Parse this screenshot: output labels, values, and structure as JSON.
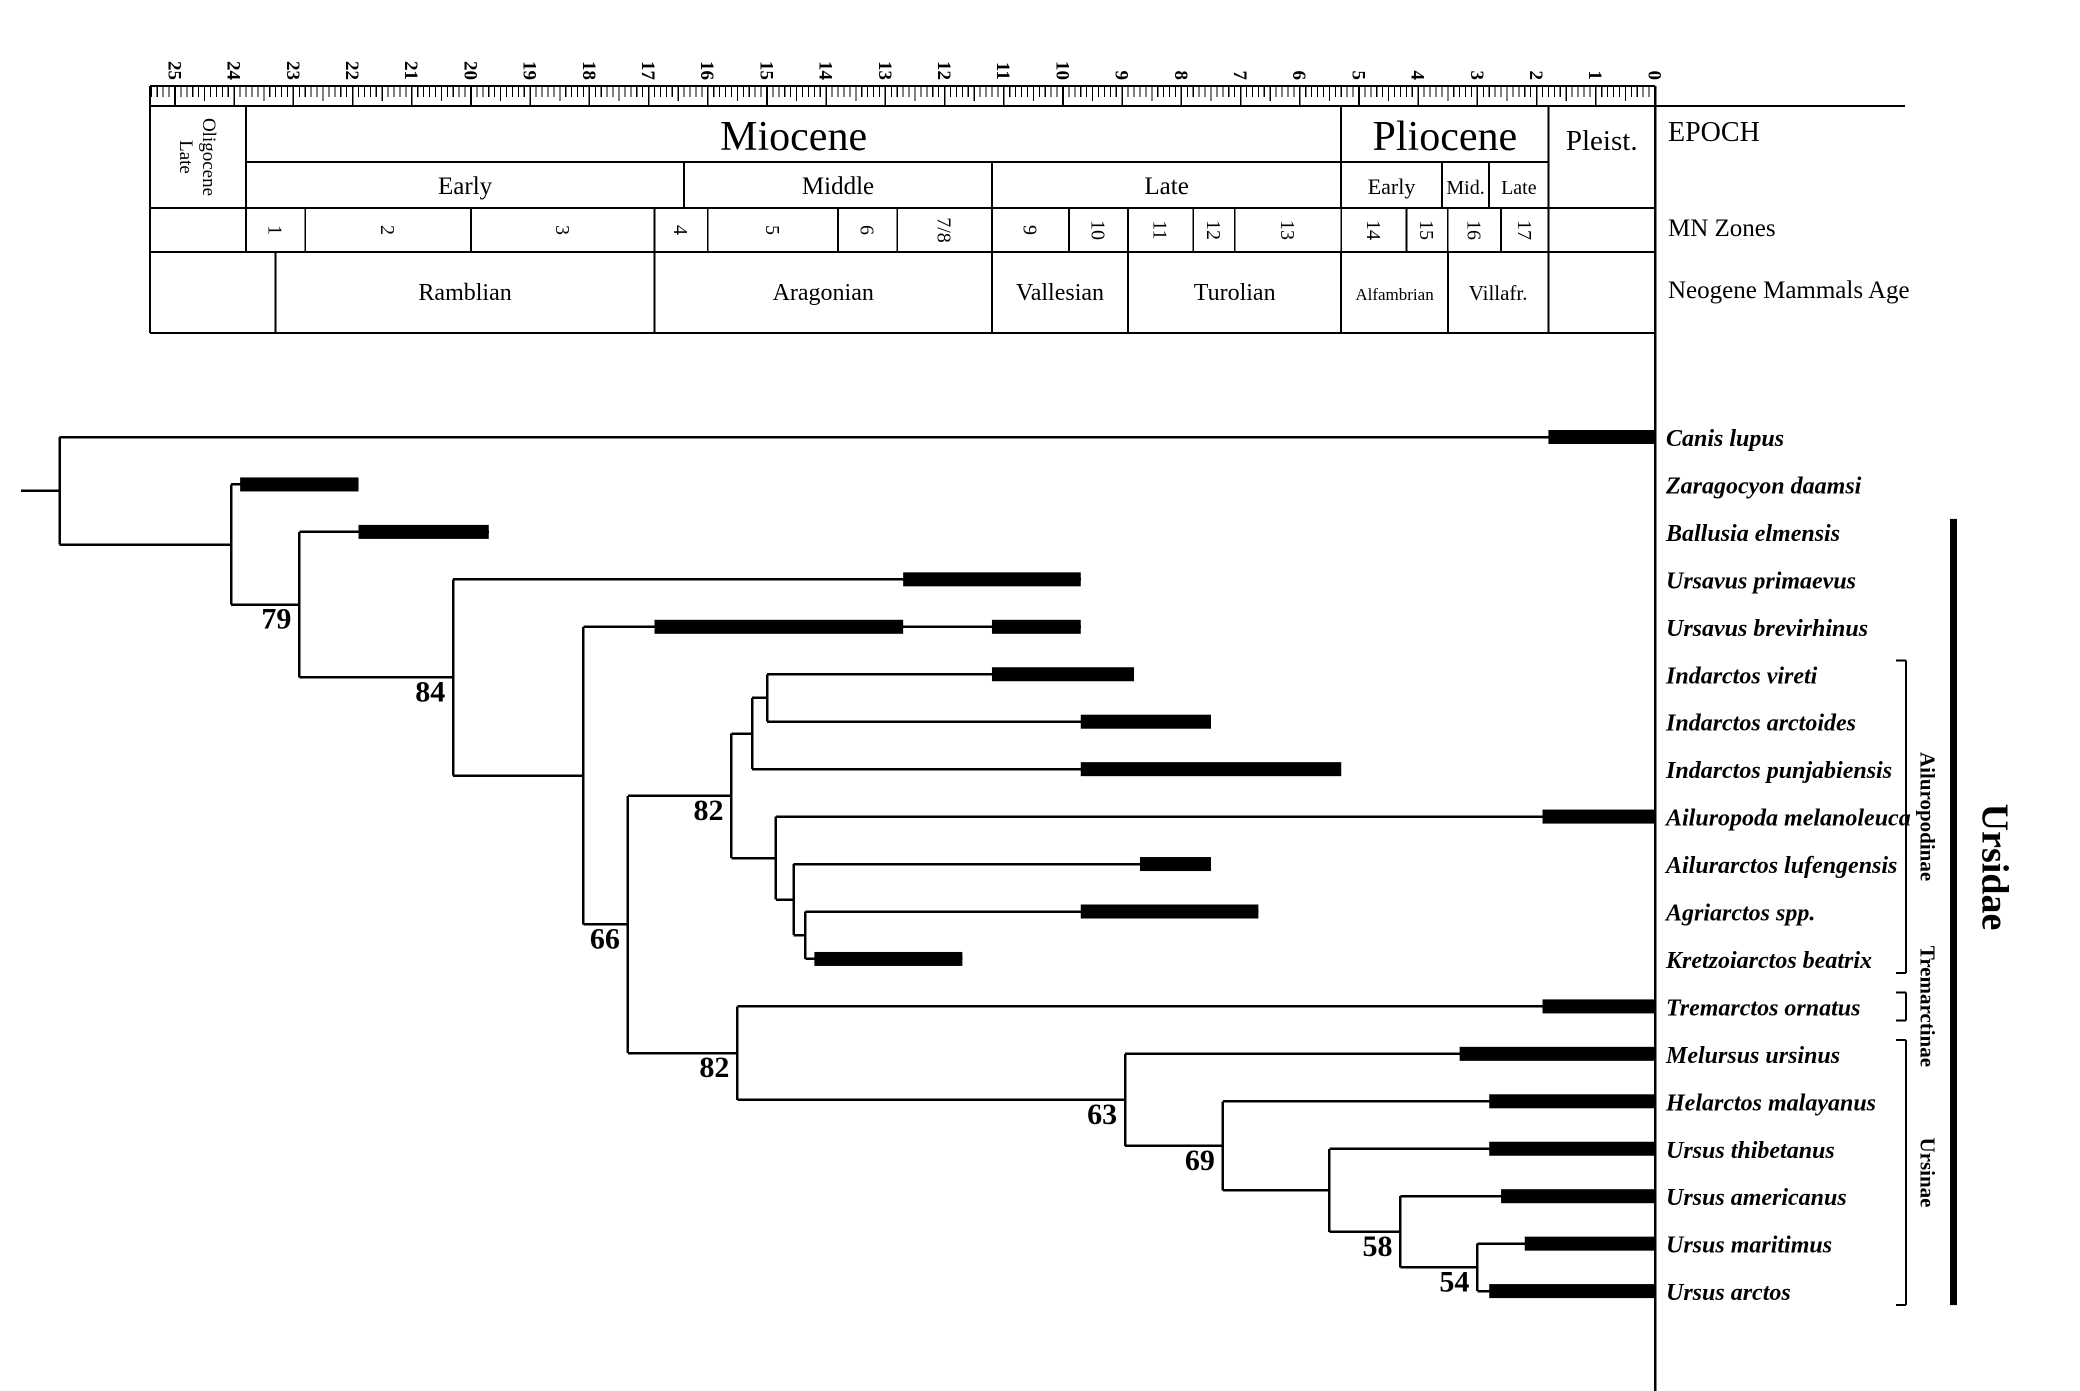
{
  "figure": {
    "background": "#ffffff",
    "ink": "#000000"
  },
  "rows": {
    "epoch": "EPOCH",
    "mn": "MN Zones",
    "age": "Neogene Mammals Age"
  },
  "timescale": {
    "unit": "Ma",
    "from": 25,
    "to": 0,
    "tick_labels": [
      25,
      24,
      23,
      22,
      21,
      20,
      19,
      18,
      17,
      16,
      15,
      14,
      13,
      12,
      11,
      10,
      9,
      8,
      7,
      6,
      5,
      4,
      3,
      2,
      1,
      0
    ],
    "minor_step": 0.1
  },
  "epochs": [
    {
      "name": "Oligocene",
      "sub": "Late",
      "from": 25.4,
      "to": 23.8,
      "rotated": true
    },
    {
      "name": "Miocene",
      "from": 23.8,
      "to": 5.3,
      "stages": [
        {
          "name": "Early",
          "from": 23.8,
          "to": 16.4
        },
        {
          "name": "Middle",
          "from": 16.4,
          "to": 11.2
        },
        {
          "name": "Late",
          "from": 11.2,
          "to": 5.3
        }
      ]
    },
    {
      "name": "Pliocene",
      "from": 5.3,
      "to": 1.8,
      "stages": [
        {
          "name": "Early",
          "from": 5.3,
          "to": 3.6
        },
        {
          "name": "Mid.",
          "from": 3.6,
          "to": 2.8
        },
        {
          "name": "Late",
          "from": 2.8,
          "to": 1.8
        }
      ]
    },
    {
      "name": "Pleist.",
      "from": 1.8,
      "to": 0
    }
  ],
  "mn_zones": [
    {
      "label": "1",
      "from": 23.8,
      "to": 22.8
    },
    {
      "label": "2",
      "from": 22.8,
      "to": 20.0
    },
    {
      "label": "3",
      "from": 20.0,
      "to": 16.9
    },
    {
      "label": "4",
      "from": 16.9,
      "to": 16.0
    },
    {
      "label": "5",
      "from": 16.0,
      "to": 13.8
    },
    {
      "label": "6",
      "from": 13.8,
      "to": 12.8
    },
    {
      "label": "7/8",
      "from": 12.8,
      "to": 11.2
    },
    {
      "label": "9",
      "from": 11.2,
      "to": 9.9
    },
    {
      "label": "10",
      "from": 9.9,
      "to": 8.9
    },
    {
      "label": "11",
      "from": 8.9,
      "to": 7.8
    },
    {
      "label": "12",
      "from": 7.8,
      "to": 7.1
    },
    {
      "label": "13",
      "from": 7.1,
      "to": 5.3
    },
    {
      "label": "14",
      "from": 5.3,
      "to": 4.2
    },
    {
      "label": "15",
      "from": 4.2,
      "to": 3.5
    },
    {
      "label": "16",
      "from": 3.5,
      "to": 2.6
    },
    {
      "label": "17",
      "from": 2.6,
      "to": 1.8
    }
  ],
  "mammal_ages": [
    {
      "name": "Ramblian",
      "from": 23.3,
      "to": 16.9
    },
    {
      "name": "Aragonian",
      "from": 16.9,
      "to": 11.2
    },
    {
      "name": "Vallesian",
      "from": 11.2,
      "to": 8.9
    },
    {
      "name": "Turolian",
      "from": 8.9,
      "to": 5.3
    },
    {
      "name": "Alfambrian",
      "from": 5.3,
      "to": 3.5
    },
    {
      "name": "Villafr.",
      "from": 3.5,
      "to": 1.8
    }
  ],
  "taxa": [
    {
      "name": "Canis lupus",
      "bars": [
        [
          1.8,
          0
        ]
      ]
    },
    {
      "name": "Zaragocyon daamsi",
      "bars": [
        [
          23.9,
          21.9
        ]
      ]
    },
    {
      "name": "Ballusia elmensis",
      "bars": [
        [
          21.9,
          19.7
        ]
      ]
    },
    {
      "name": "Ursavus primaevus",
      "bars": [
        [
          12.7,
          9.7
        ]
      ]
    },
    {
      "name": "Ursavus brevirhinus",
      "bars": [
        [
          16.9,
          12.7
        ],
        [
          11.2,
          9.7
        ]
      ]
    },
    {
      "name": "Indarctos vireti",
      "bars": [
        [
          11.2,
          8.8
        ]
      ]
    },
    {
      "name": "Indarctos arctoides",
      "bars": [
        [
          9.7,
          7.5
        ]
      ]
    },
    {
      "name": "Indarctos punjabiensis",
      "bars": [
        [
          9.7,
          5.3
        ]
      ]
    },
    {
      "name": "Ailuropoda melanoleuca",
      "bars": [
        [
          1.9,
          0
        ]
      ]
    },
    {
      "name": "Ailurarctos lufengensis",
      "bars": [
        [
          8.7,
          7.5
        ]
      ]
    },
    {
      "name": "Agriarctos spp.",
      "bars": [
        [
          9.7,
          6.7
        ]
      ]
    },
    {
      "name": "Kretzoiarctos beatrix",
      "bars": [
        [
          14.2,
          11.7
        ]
      ]
    },
    {
      "name": "Tremarctos ornatus",
      "bars": [
        [
          1.9,
          0
        ]
      ]
    },
    {
      "name": "Melursus ursinus",
      "bars": [
        [
          3.3,
          0
        ]
      ]
    },
    {
      "name": "Helarctos malayanus",
      "bars": [
        [
          2.8,
          0
        ]
      ]
    },
    {
      "name": "Ursus thibetanus",
      "bars": [
        [
          2.8,
          0
        ]
      ]
    },
    {
      "name": "Ursus americanus",
      "bars": [
        [
          2.6,
          0
        ]
      ]
    },
    {
      "name": "Ursus maritimus",
      "bars": [
        [
          2.2,
          0
        ]
      ]
    },
    {
      "name": "Ursus arctos",
      "bars": [
        [
          2.8,
          0
        ]
      ]
    }
  ],
  "tree": {
    "t": 26.95,
    "stub": 27.6,
    "children": [
      {
        "leaf": "Canis lupus"
      },
      {
        "t": 24.05,
        "children": [
          {
            "leaf": "Zaragocyon daamsi"
          },
          {
            "t": 22.9,
            "support": "79",
            "children": [
              {
                "leaf": "Ballusia elmensis"
              },
              {
                "t": 20.3,
                "support": "84",
                "children": [
                  {
                    "leaf": "Ursavus primaevus"
                  },
                  {
                    "t": 18.1,
                    "children": [
                      {
                        "leaf": "Ursavus brevirhinus"
                      },
                      {
                        "t": 17.35,
                        "support": "66",
                        "children": [
                          {
                            "t": 15.6,
                            "support": "82",
                            "children": [
                              {
                                "t": 15.25,
                                "children": [
                                  {
                                    "t": 15.0,
                                    "children": [
                                      {
                                        "leaf": "Indarctos vireti"
                                      },
                                      {
                                        "leaf": "Indarctos arctoides"
                                      }
                                    ]
                                  },
                                  {
                                    "leaf": "Indarctos punjabiensis"
                                  }
                                ]
                              },
                              {
                                "t": 14.85,
                                "children": [
                                  {
                                    "leaf": "Ailuropoda melanoleuca"
                                  },
                                  {
                                    "t": 14.55,
                                    "children": [
                                      {
                                        "leaf": "Ailurarctos lufengensis"
                                      },
                                      {
                                        "t": 14.35,
                                        "children": [
                                          {
                                            "leaf": "Agriarctos spp."
                                          },
                                          {
                                            "leaf": "Kretzoiarctos beatrix"
                                          }
                                        ]
                                      }
                                    ]
                                  }
                                ]
                              }
                            ]
                          },
                          {
                            "t": 15.5,
                            "support": "82",
                            "children": [
                              {
                                "leaf": "Tremarctos ornatus"
                              },
                              {
                                "t": 8.95,
                                "support": "63",
                                "children": [
                                  {
                                    "leaf": "Melursus ursinus"
                                  },
                                  {
                                    "t": 7.3,
                                    "support": "69",
                                    "children": [
                                      {
                                        "leaf": "Helarctos malayanus"
                                      },
                                      {
                                        "t": 5.5,
                                        "children": [
                                          {
                                            "leaf": "Ursus thibetanus"
                                          },
                                          {
                                            "t": 4.3,
                                            "support": "58",
                                            "children": [
                                              {
                                                "leaf": "Ursus americanus"
                                              },
                                              {
                                                "t": 3.0,
                                                "support": "54",
                                                "children": [
                                                  {
                                                    "leaf": "Ursus maritimus"
                                                  },
                                                  {
                                                    "leaf": "Ursus arctos"
                                                  }
                                                ]
                                              }
                                            ]
                                          }
                                        ]
                                      }
                                    ]
                                  }
                                ]
                              }
                            ]
                          }
                        ]
                      }
                    ]
                  }
                ]
              }
            ]
          }
        ]
      }
    ]
  },
  "clades": [
    {
      "label": "Ailuropodinae",
      "from": "Indarctos vireti",
      "to": "Kretzoiarctos beatrix"
    },
    {
      "label": "Tremarctinae",
      "from": "Tremarctos ornatus",
      "to": "Tremarctos ornatus"
    },
    {
      "label": "Ursinae",
      "from": "Melursus ursinus",
      "to": "Ursus arctos"
    }
  ],
  "family": {
    "label": "Ursidae",
    "from": "Ballusia elmensis",
    "to": "Ursus arctos"
  }
}
